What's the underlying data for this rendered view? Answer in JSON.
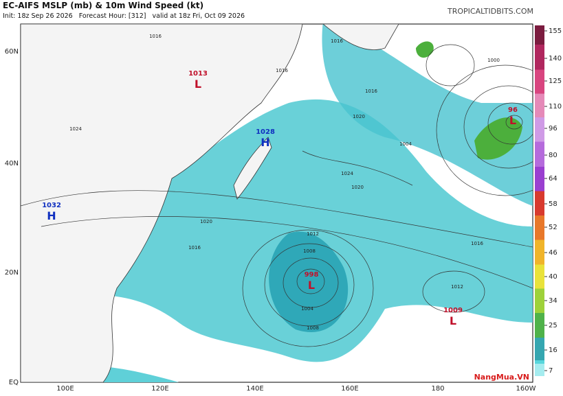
{
  "header": {
    "title": "EC-AIFS MSLP (mb) & 10m Wind Speed (kt)",
    "subtitle": "Init: 18z Sep 26 2026   Forecast Hour: [312]   valid at 18z Fri, Oct 09 2026",
    "site": "TROPICALTIDBITS.COM"
  },
  "map": {
    "lat_labels": [
      "60N",
      "40N",
      "20N",
      "EQ"
    ],
    "lon_labels": [
      "100E",
      "120E",
      "140E",
      "160E",
      "180",
      "160W"
    ],
    "pressure_centers": [
      {
        "type": "L",
        "value": "1013"
      },
      {
        "type": "H",
        "value": "1028"
      },
      {
        "type": "H",
        "value": "1032"
      },
      {
        "type": "L",
        "value": "998"
      },
      {
        "type": "L",
        "value": "1009"
      },
      {
        "type": "L",
        "value": "96"
      }
    ],
    "isobar_labels": [
      "1016",
      "1016",
      "1020",
      "1024",
      "1020",
      "1016",
      "1012",
      "1008",
      "1004",
      "1008",
      "1000",
      "1004",
      "1016",
      "1020",
      "1024",
      "1016",
      "1012",
      "1016"
    ]
  },
  "colorbar": {
    "ticks": [
      155,
      140,
      125,
      110,
      96,
      80,
      64,
      58,
      52,
      46,
      40,
      34,
      25,
      16,
      7
    ],
    "colors": [
      "#7b1c3f",
      "#b0275e",
      "#d8457f",
      "#e58ab8",
      "#cf9be6",
      "#b56bdc",
      "#9a3fd0",
      "#d83a2e",
      "#e8782a",
      "#f0b42a",
      "#e9e23a",
      "#9ed13a",
      "#4fb24a",
      "#35a6b0",
      "#58d6dc",
      "#a5ecef"
    ]
  },
  "watermark": "NangMua.VN"
}
